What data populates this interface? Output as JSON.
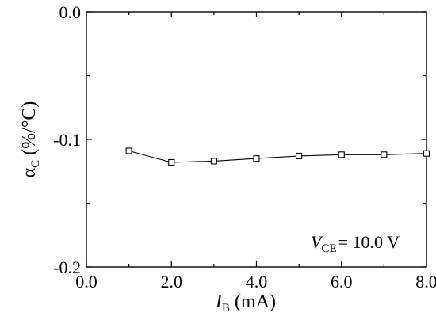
{
  "chart_data": {
    "type": "line",
    "title": "",
    "xlabel": {
      "main": "I",
      "sub": "B",
      "unit": " (mA)"
    },
    "ylabel": {
      "main": "α",
      "sub": "C",
      "unit": " (%/°C)"
    },
    "xlim": [
      0.0,
      8.0
    ],
    "ylim": [
      -0.2,
      0.0
    ],
    "x_ticks": [
      0.0,
      2.0,
      4.0,
      6.0,
      8.0
    ],
    "x_tick_labels": [
      "0.0",
      "2.0",
      "4.0",
      "6.0",
      "8.0"
    ],
    "y_ticks": [
      0.0,
      -0.1,
      -0.2
    ],
    "y_tick_labels": [
      "0.0",
      "-0.1",
      "-0.2"
    ],
    "grid": false,
    "series": [
      {
        "marker": "open-square",
        "color": "#000000",
        "x": [
          1.0,
          2.0,
          3.0,
          4.0,
          5.0,
          6.0,
          7.0,
          8.0
        ],
        "y": [
          -0.109,
          -0.118,
          -0.117,
          -0.115,
          -0.113,
          -0.112,
          -0.112,
          -0.111
        ]
      }
    ],
    "annotation": {
      "var": "V",
      "sub": "CE",
      "text": "=  10.0 V"
    }
  }
}
